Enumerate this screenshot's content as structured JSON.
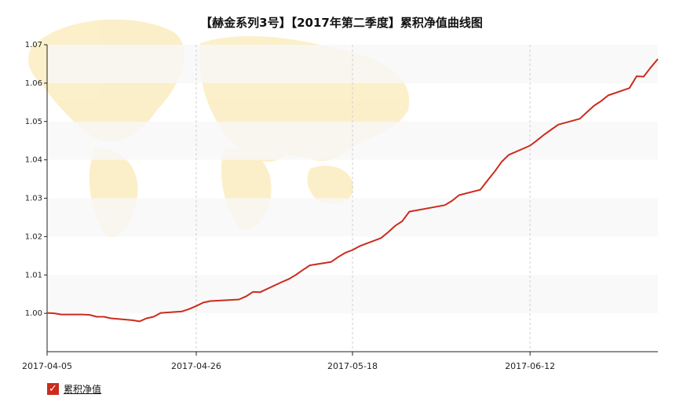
{
  "colors": {
    "series": "#cc2b1d",
    "band": "#f7f7f7",
    "grid": "#cfcfcf",
    "axis": "#222222",
    "map": "#fbeec4"
  },
  "chart_data": {
    "type": "line",
    "title": "【赫金系列3号】【2017年第二季度】累积净值曲线图",
    "xlabel": "",
    "ylabel": "",
    "ylim": [
      0.99,
      1.07
    ],
    "yticks": [
      "1.00",
      "1.01",
      "1.02",
      "1.03",
      "1.04",
      "1.05",
      "1.06",
      "1.07"
    ],
    "xticks": [
      "2017-04-05",
      "2017-04-26",
      "2017-05-18",
      "2017-06-12"
    ],
    "grid": "horizontal bands and vertical dashed lines",
    "legend": "bottom-left",
    "series": [
      {
        "name": "累积净值",
        "color": "#cc2b1d",
        "x": [
          "2017-04-05",
          "2017-04-06",
          "2017-04-07",
          "2017-04-10",
          "2017-04-11",
          "2017-04-12",
          "2017-04-13",
          "2017-04-14",
          "2017-04-17",
          "2017-04-18",
          "2017-04-19",
          "2017-04-20",
          "2017-04-21",
          "2017-04-24",
          "2017-04-25",
          "2017-04-26",
          "2017-04-27",
          "2017-04-28",
          "2017-05-02",
          "2017-05-03",
          "2017-05-04",
          "2017-05-05",
          "2017-05-08",
          "2017-05-09",
          "2017-05-10",
          "2017-05-11",
          "2017-05-12",
          "2017-05-15",
          "2017-05-16",
          "2017-05-17",
          "2017-05-18",
          "2017-05-19",
          "2017-05-22",
          "2017-05-23",
          "2017-05-24",
          "2017-05-25",
          "2017-05-26",
          "2017-05-31",
          "2017-06-01",
          "2017-06-02",
          "2017-06-05",
          "2017-06-06",
          "2017-06-07",
          "2017-06-08",
          "2017-06-09",
          "2017-06-12",
          "2017-06-13",
          "2017-06-14",
          "2017-06-15",
          "2017-06-16",
          "2017-06-19",
          "2017-06-20",
          "2017-06-21",
          "2017-06-22",
          "2017-06-23",
          "2017-06-26",
          "2017-06-27",
          "2017-06-28",
          "2017-06-29",
          "2017-06-30"
        ],
        "y": [
          1.0001,
          1.0,
          0.9997,
          0.9997,
          0.9996,
          0.9991,
          0.9991,
          0.9987,
          0.9982,
          0.9979,
          0.9987,
          0.9991,
          1.0001,
          1.0005,
          1.0011,
          1.0019,
          1.0028,
          1.0032,
          1.0036,
          1.0044,
          1.0056,
          1.0055,
          1.0081,
          1.0089,
          1.01,
          1.0113,
          1.0125,
          1.0134,
          1.0147,
          1.0158,
          1.0165,
          1.0175,
          1.0196,
          1.0211,
          1.0228,
          1.024,
          1.0265,
          1.0282,
          1.0293,
          1.0308,
          1.0322,
          1.0346,
          1.0369,
          1.0395,
          1.0413,
          1.0437,
          1.0451,
          1.0466,
          1.0479,
          1.0492,
          1.0507,
          1.0524,
          1.0541,
          1.0553,
          1.0568,
          1.0587,
          1.0618,
          1.0617,
          1.0641,
          1.0663
        ]
      }
    ]
  }
}
